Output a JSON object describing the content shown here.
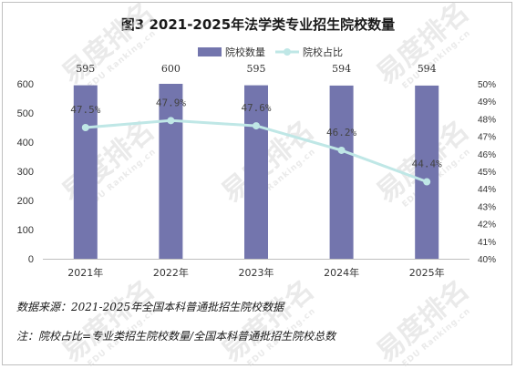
{
  "chart_data": {
    "type": "bar",
    "title": "图3  2021-2025年法学类专业招生院校数量",
    "categories": [
      "2021年",
      "2022年",
      "2023年",
      "2024年",
      "2025年"
    ],
    "series": [
      {
        "name": "院校数量",
        "type": "bar",
        "axis": "left",
        "color": "#7375ad",
        "values": [
          595,
          600,
          595,
          594,
          594
        ],
        "labels": [
          "595",
          "600",
          "595",
          "594",
          "594"
        ]
      },
      {
        "name": "院校占比",
        "type": "line",
        "axis": "right",
        "color": "#bfe7e6",
        "values": [
          47.5,
          47.9,
          47.6,
          46.2,
          44.4
        ],
        "labels": [
          "47.5%",
          "47.9%",
          "47.6%",
          "46.2%",
          "44.4%"
        ]
      }
    ],
    "ylim": [
      0,
      600
    ],
    "yticks": [
      "0",
      "100",
      "200",
      "300",
      "400",
      "500",
      "600"
    ],
    "y2lim": [
      40,
      50
    ],
    "y2ticks": [
      "40%",
      "41%",
      "42%",
      "43%",
      "44%",
      "45%",
      "46%",
      "47%",
      "48%",
      "49%",
      "50%"
    ],
    "grid": false,
    "legend_position": "top-center"
  },
  "notes": {
    "source": "数据来源：2021-2025年全国本科普通批招生院校数据",
    "formula": "注：院校占比=专业类招生院校数量/全国本科普通批招生院校总数"
  },
  "watermark": {
    "text": "易度排名",
    "subtext": "EDU Ranking.cn",
    "color": "#d9d9d9"
  }
}
